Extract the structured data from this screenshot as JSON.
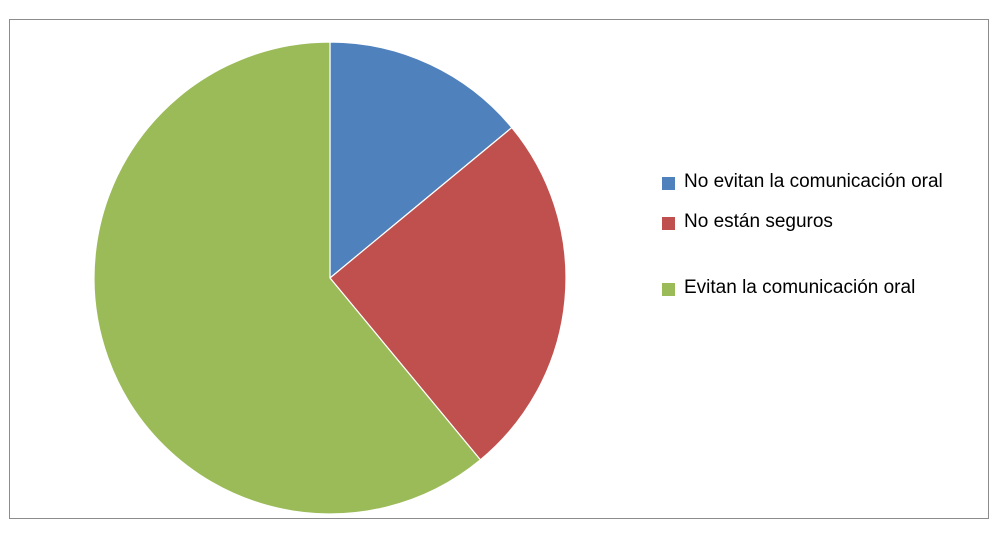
{
  "chart_data": {
    "type": "pie",
    "title": "",
    "categories": [
      "No evitan la comunicación oral",
      "No están seguros",
      "Evitan la comunicación oral"
    ],
    "values": [
      14,
      25,
      61
    ],
    "colors": [
      "#4f81bd",
      "#c0504d",
      "#9bbb59"
    ],
    "start_angle_deg": 0,
    "direction": "clockwise",
    "legend": {
      "position": "right",
      "entries": [
        "No evitan la comunicación oral",
        "No están seguros",
        "Evitan la comunicación oral"
      ]
    }
  }
}
